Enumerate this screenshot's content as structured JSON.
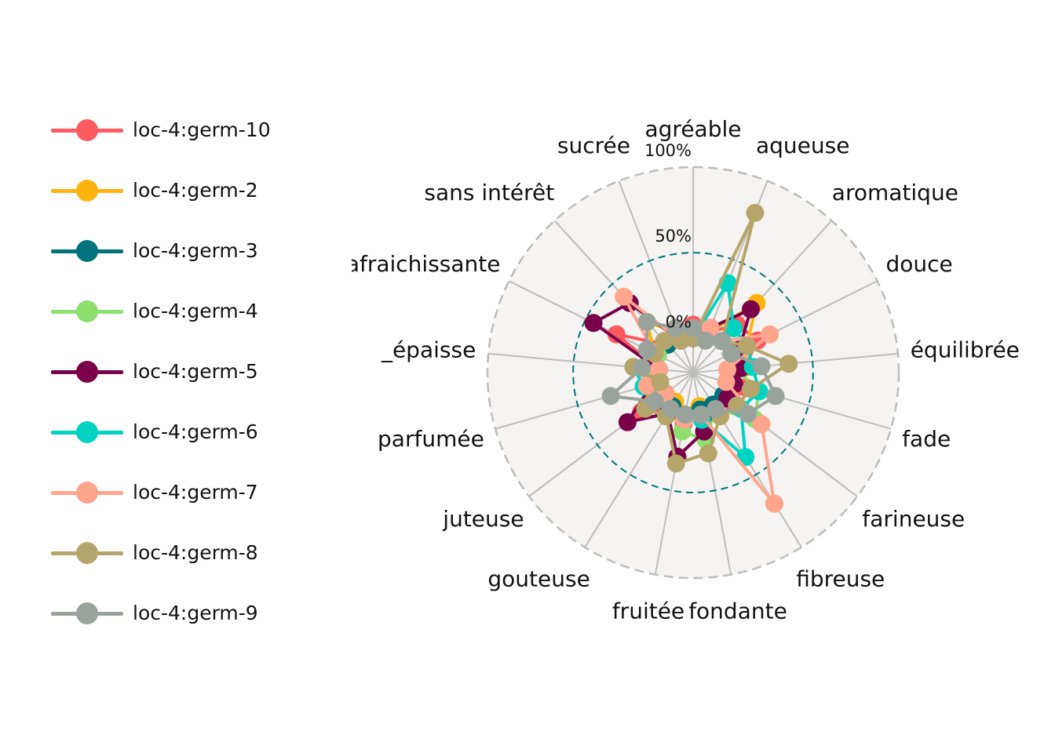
{
  "chart_data": {
    "type": "radar",
    "axes": [
      "agréable",
      "aqueuse",
      "aromatique",
      "douce",
      "équilibrée",
      "fade",
      "farineuse",
      "fibreuse",
      "fondante",
      "fruitée",
      "gouteuse",
      "juteuse",
      "parfumée",
      "_épaisse",
      "rafraichissante",
      "sans intérêt",
      "sucrée"
    ],
    "radial_ticks": [
      "0%",
      "50%",
      "100%"
    ],
    "rlim": [
      -20,
      100
    ],
    "reference_circle": 50,
    "series": [
      {
        "name": "loc-4:germ-10",
        "color": "#ff5a5f",
        "values": [
          8,
          5,
          18,
          22,
          10,
          12,
          8,
          5,
          5,
          10,
          5,
          18,
          5,
          0,
          30,
          2,
          0
        ]
      },
      {
        "name": "loc-4:germ-2",
        "color": "#ffb30f",
        "values": [
          5,
          5,
          35,
          15,
          10,
          5,
          3,
          3,
          0,
          5,
          0,
          15,
          8,
          10,
          5,
          20,
          5
        ]
      },
      {
        "name": "loc-4:germ-3",
        "color": "#00747a",
        "values": [
          3,
          3,
          5,
          5,
          3,
          3,
          2,
          2,
          2,
          5,
          3,
          2,
          3,
          3,
          3,
          2,
          2
        ]
      },
      {
        "name": "loc-4:germ-4",
        "color": "#8de06f",
        "values": [
          0,
          2,
          5,
          8,
          5,
          20,
          25,
          5,
          20,
          15,
          5,
          8,
          5,
          5,
          3,
          5,
          2
        ]
      },
      {
        "name": "loc-4:germ-5",
        "color": "#7a0049",
        "values": [
          0,
          8,
          30,
          10,
          8,
          5,
          5,
          5,
          15,
          30,
          8,
          28,
          5,
          0,
          45,
          35,
          0
        ]
      },
      {
        "name": "loc-4:germ-6",
        "color": "#00d4c1",
        "values": [
          0,
          36,
          15,
          15,
          15,
          20,
          15,
          38,
          8,
          8,
          5,
          5,
          10,
          15,
          5,
          5,
          5
        ]
      },
      {
        "name": "loc-4:germ-7",
        "color": "#ffa58d",
        "values": [
          5,
          8,
          5,
          30,
          0,
          0,
          30,
          70,
          5,
          8,
          5,
          0,
          8,
          0,
          5,
          40,
          0
        ]
      },
      {
        "name": "loc-4:germ-8",
        "color": "#b5a56b",
        "values": [
          0,
          80,
          5,
          15,
          36,
          15,
          12,
          10,
          28,
          34,
          10,
          15,
          0,
          15,
          5,
          5,
          0
        ]
      },
      {
        "name": "loc-4:germ-9",
        "color": "#9aa39b",
        "values": [
          6,
          0,
          5,
          5,
          20,
          30,
          20,
          5,
          5,
          5,
          5,
          8,
          30,
          10,
          10,
          20,
          8
        ]
      }
    ]
  }
}
